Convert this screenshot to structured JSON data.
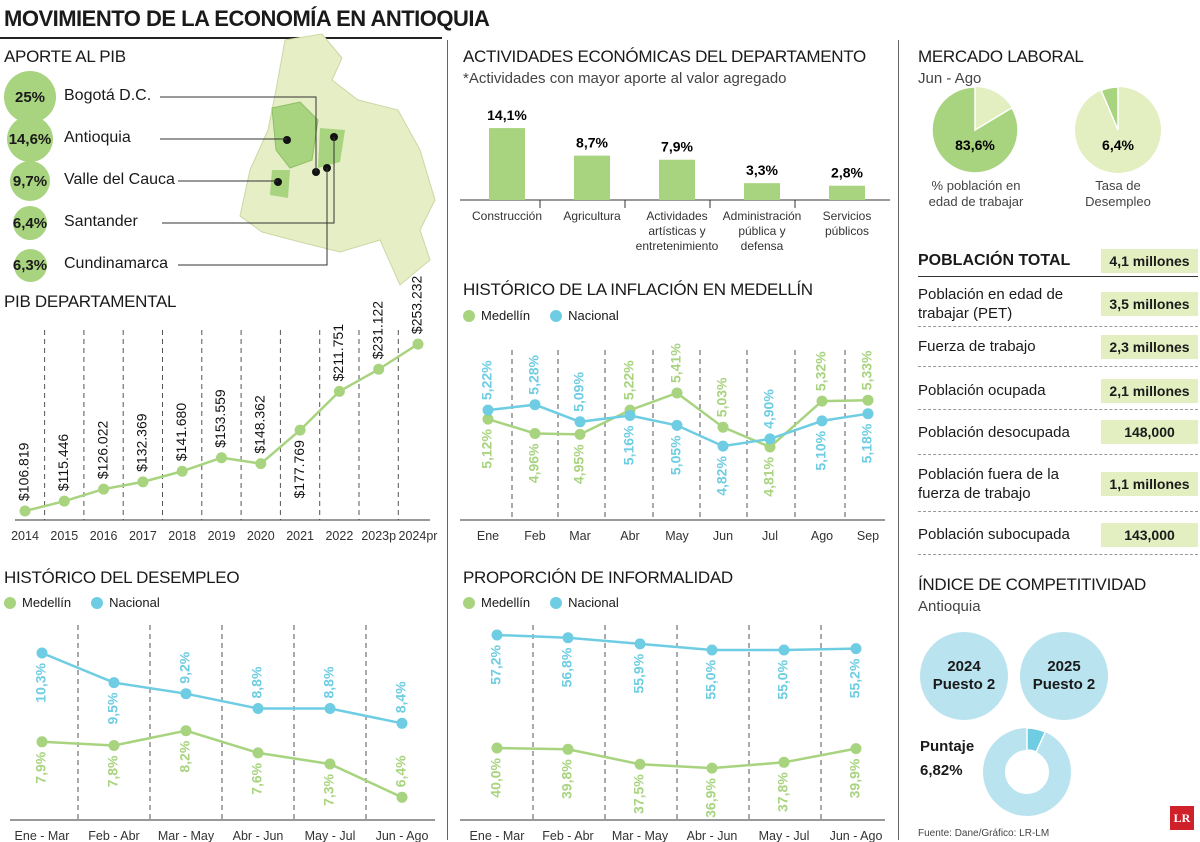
{
  "title": "MOVIMIENTO DE LA ECONOMÍA EN ANTIOQUIA",
  "colors": {
    "green": "#a8d37f",
    "light_green": "#e3eec1",
    "blue": "#6ecde2",
    "light_blue": "#b9e3ef",
    "red_logo": "#d0202a"
  },
  "aporte": {
    "title": "APORTE AL PIB",
    "items": [
      {
        "value": "25%",
        "label": "Bogotá D.C."
      },
      {
        "value": "14,6%",
        "label": "Antioquia"
      },
      {
        "value": "9,7%",
        "label": "Valle del Cauca"
      },
      {
        "value": "6,4%",
        "label": "Santander"
      },
      {
        "value": "6,3%",
        "label": "Cundinamarca"
      }
    ]
  },
  "actividades": {
    "title": "ACTIVIDADES ECONÓMICAS DEL DEPARTAMENTO",
    "subtitle": "*Actividades con mayor aporte al valor agregado"
  },
  "inflacion_title": "HISTÓRICO DE LA INFLACIÓN EN MEDELLÍN",
  "pib_title": "PIB DEPARTAMENTAL",
  "desempleo_title": "HISTÓRICO DEL DESEMPLEO",
  "informalidad_title": "PROPORCIÓN DE INFORMALIDAD",
  "legend": {
    "medellin": "Medellín",
    "nacional": "Nacional"
  },
  "mercado": {
    "title": "MERCADO LABORAL",
    "period": "Jun - Ago",
    "pies": [
      {
        "value": 83.6,
        "label_value": "83,6%",
        "caption": "% población en edad de trabajar"
      },
      {
        "value": 6.4,
        "label_value": "6,4%",
        "caption": "Tasa de Desempleo"
      }
    ]
  },
  "poblacion": [
    {
      "label": "POBLACIÓN TOTAL",
      "value": "4,1 millones"
    },
    {
      "label": "Población en edad de trabajar (PET)",
      "value": "3,5 millones"
    },
    {
      "label": "Fuerza de trabajo",
      "value": "2,3 millones"
    },
    {
      "label": "Población ocupada",
      "value": "2,1 millones"
    },
    {
      "label": "Población desocupada",
      "value": "148,000"
    },
    {
      "label": "Población fuera de la fuerza de trabajo",
      "value": "1,1 millones"
    },
    {
      "label": "Población subocupada",
      "value": "143,000"
    }
  ],
  "competitividad": {
    "title": "ÍNDICE DE COMPETITIVIDAD",
    "subtitle": "Antioquia",
    "years": [
      {
        "year": "2024",
        "rank": "Puesto 2"
      },
      {
        "year": "2025",
        "rank": "Puesto 2"
      }
    ],
    "score_label": "Puntaje",
    "score": "6,82%",
    "score_value": 6.82
  },
  "source": "Fuente: Dane/Gráfico: LR-LM",
  "logo": "LR",
  "chart_data": [
    {
      "id": "pib",
      "type": "line",
      "title": "PIB DEPARTAMENTAL",
      "categories": [
        "2014",
        "2015",
        "2016",
        "2017",
        "2018",
        "2019",
        "2020",
        "2021",
        "2022",
        "2023p",
        "2024pr"
      ],
      "series": [
        {
          "values": [
            106819,
            115446,
            126022,
            132369,
            141680,
            153559,
            148362,
            177769,
            211751,
            231122,
            253232
          ]
        }
      ],
      "labels": [
        "$106.819",
        "$115.446",
        "$126.022",
        "$132.369",
        "$141.680",
        "$153.559",
        "$148.362",
        "$177.769",
        "$211.751",
        "$231.122",
        "$253.232"
      ]
    },
    {
      "id": "actividades",
      "type": "bar",
      "title": "ACTIVIDADES ECONÓMICAS DEL DEPARTAMENTO",
      "categories": [
        "Construcción",
        "Agricultura",
        "Actividades artísticas y entretenimiento",
        "Administración pública y defensa",
        "Servicios públicos"
      ],
      "values": [
        14.1,
        8.7,
        7.9,
        3.3,
        2.8
      ],
      "labels": [
        "14,1%",
        "8,7%",
        "7,9%",
        "3,3%",
        "2,8%"
      ]
    },
    {
      "id": "inflacion",
      "type": "line",
      "title": "HISTÓRICO DE LA INFLACIÓN EN MEDELLÍN",
      "categories": [
        "Ene",
        "Feb",
        "Mar",
        "Abr",
        "May",
        "Jun",
        "Jul",
        "Ago",
        "Sep"
      ],
      "series": [
        {
          "name": "Medellín",
          "values": [
            5.12,
            4.96,
            4.95,
            5.22,
            5.41,
            5.03,
            4.81,
            5.32,
            5.33
          ],
          "labels": [
            "5,12%",
            "4,96%",
            "4,95%",
            "5,22%",
            "5,41%",
            "5,03%",
            "4,81%",
            "5,32%",
            "5,33%"
          ]
        },
        {
          "name": "Nacional",
          "values": [
            5.22,
            5.28,
            5.09,
            5.16,
            5.05,
            4.82,
            4.9,
            5.1,
            5.18
          ],
          "labels": [
            "5,22%",
            "5,28%",
            "5,09%",
            "5,16%",
            "5,05%",
            "4,82%",
            "4,90%",
            "5,10%",
            "5,18%"
          ]
        }
      ]
    },
    {
      "id": "desempleo",
      "type": "line",
      "title": "HISTÓRICO DEL DESEMPLEO",
      "categories": [
        "Ene - Mar",
        "Feb - Abr",
        "Mar - May",
        "Abr - Jun",
        "May - Jul",
        "Jun - Ago"
      ],
      "series": [
        {
          "name": "Medellín",
          "values": [
            7.9,
            7.8,
            8.2,
            7.6,
            7.3,
            6.4
          ],
          "labels": [
            "7,9%",
            "7,8%",
            "8,2%",
            "7,6%",
            "7,3%",
            "6,4%"
          ]
        },
        {
          "name": "Nacional",
          "values": [
            10.3,
            9.5,
            9.2,
            8.8,
            8.8,
            8.4
          ],
          "labels": [
            "10,3%",
            "9,5%",
            "9,2%",
            "8,8%",
            "8,8%",
            "8,4%"
          ]
        }
      ]
    },
    {
      "id": "informalidad",
      "type": "line",
      "title": "PROPORCIÓN DE INFORMALIDAD",
      "categories": [
        "Ene - Mar",
        "Feb - Abr",
        "Mar - May",
        "Abr - Jun",
        "May - Jul",
        "Jun - Ago"
      ],
      "series": [
        {
          "name": "Medellín",
          "values": [
            40.0,
            39.8,
            37.5,
            36.9,
            37.8,
            39.9
          ],
          "labels": [
            "40,0%",
            "39,8%",
            "37,5%",
            "36,9%",
            "37,8%",
            "39,9%"
          ]
        },
        {
          "name": "Nacional",
          "values": [
            57.2,
            56.8,
            55.9,
            55.0,
            55.0,
            55.2
          ],
          "labels": [
            "57,2%",
            "56,8%",
            "55,9%",
            "55,0%",
            "55,0%",
            "55,2%"
          ]
        }
      ]
    }
  ]
}
